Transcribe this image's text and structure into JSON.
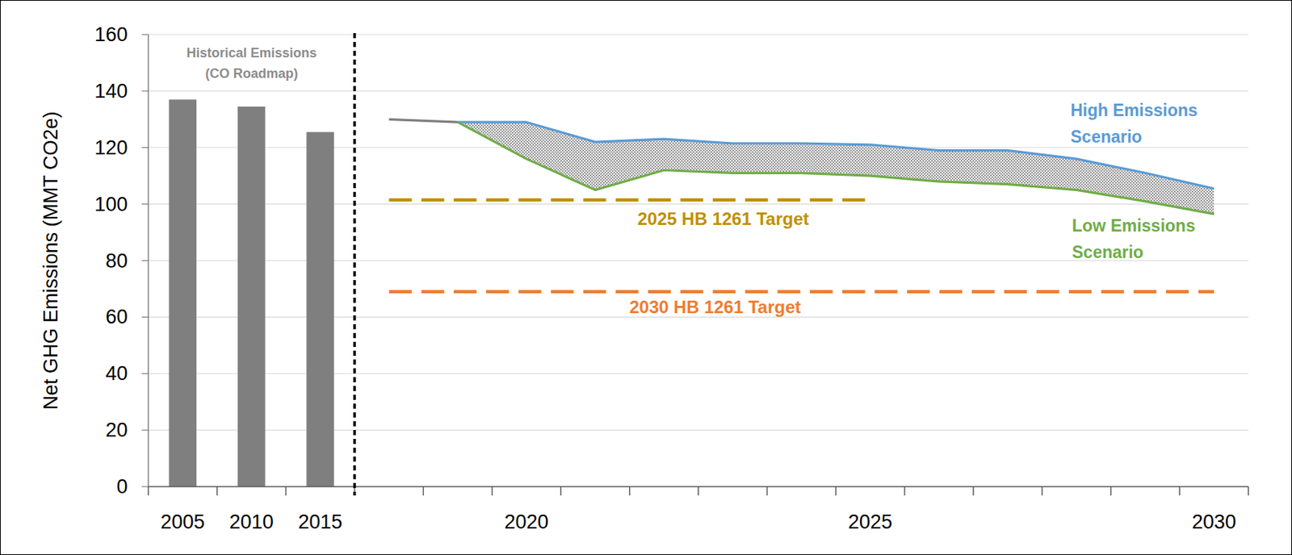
{
  "chart_data": {
    "type": "line",
    "y_label": "Net GHG Emissions (MMT CO2e)",
    "categories": [
      "2005",
      "2010",
      "2015",
      null,
      null,
      "2020",
      null,
      null,
      null,
      null,
      "2025",
      null,
      null,
      null,
      null,
      "2030"
    ],
    "ylim": [
      0,
      160
    ],
    "yticks": [
      0,
      20,
      40,
      60,
      80,
      100,
      120,
      140,
      160
    ],
    "grid": true,
    "series": [
      {
        "name": "Historical Emissions\n(CO Roadmap)",
        "type": "bar",
        "color": "#7f7f7f",
        "values": [
          137,
          134.5,
          125.5,
          null,
          null,
          null,
          null,
          null,
          null,
          null,
          null,
          null,
          null,
          null,
          null,
          null
        ]
      },
      {
        "type": "line",
        "color": "#7f7f7f",
        "values": [
          null,
          null,
          null,
          130,
          129,
          null,
          null,
          null,
          null,
          null,
          null,
          null,
          null,
          null,
          null,
          null
        ]
      },
      {
        "name": "High Emissions\nScenario",
        "type": "line",
        "color": "#5b9bd5",
        "values": [
          null,
          null,
          null,
          null,
          129,
          129,
          122,
          123,
          121.5,
          121.5,
          121,
          119,
          119,
          116,
          111,
          105.5
        ]
      },
      {
        "name": "Low Emissions\nScenario",
        "type": "line",
        "color": "#70ad47",
        "values": [
          null,
          null,
          null,
          null,
          129,
          116,
          105,
          112,
          111,
          111,
          110,
          108,
          107,
          105,
          101,
          96.5
        ]
      },
      {
        "name": "2025 HB 1261 Target",
        "type": "line",
        "color": "#bf9000",
        "line_style": "dashed",
        "values": [
          null,
          null,
          null,
          101.5,
          101.5,
          101.5,
          101.5,
          101.5,
          101.5,
          101.5,
          101.5,
          null,
          null,
          null,
          null,
          null
        ]
      },
      {
        "name": "2030 HB 1261 Target",
        "type": "line",
        "color": "#ed7d31",
        "line_style": "dashed",
        "values": [
          null,
          null,
          null,
          69,
          69,
          69,
          69,
          69,
          69,
          69,
          69,
          69,
          69,
          69,
          69,
          69
        ]
      }
    ]
  }
}
